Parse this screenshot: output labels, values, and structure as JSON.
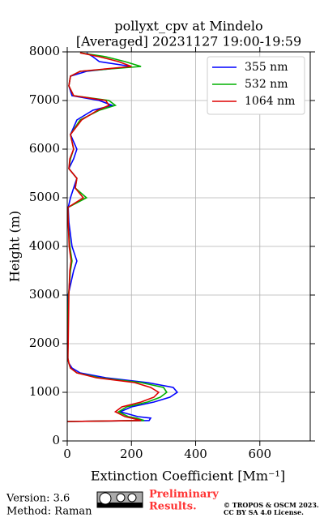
{
  "chart_data": {
    "type": "line",
    "title": "pollyxt_cpv at Mindelo",
    "subtitle": "[Averaged] 20231127 19:00-19:59",
    "x_label": "Extinction Coefficient [Mm⁻¹]",
    "y_label": "Height (m)",
    "y": [
      400,
      420,
      470,
      500,
      600,
      700,
      800,
      900,
      1000,
      1100,
      1200,
      1300,
      1400,
      1500,
      1600,
      1700,
      2000,
      2500,
      3000,
      3500,
      3700,
      4000,
      4500,
      4800,
      5000,
      5200,
      5400,
      5600,
      5800,
      6000,
      6300,
      6600,
      6800,
      6900,
      7000,
      7100,
      7300,
      7500,
      7600,
      7700,
      7800,
      7900,
      7980
    ],
    "series": [
      {
        "name": "355 nm",
        "color": "#0000ff",
        "values": [
          0,
          255,
          260,
          220,
          165,
          200,
          270,
          320,
          343,
          330,
          250,
          120,
          40,
          15,
          5,
          2,
          1,
          2,
          3,
          20,
          30,
          15,
          5,
          3,
          10,
          20,
          30,
          5,
          20,
          30,
          10,
          30,
          80,
          140,
          100,
          15,
          5,
          10,
          60,
          200,
          100,
          80,
          60
        ]
      },
      {
        "name": "532 nm",
        "color": "#00b000",
        "values": [
          0,
          240,
          215,
          190,
          160,
          185,
          250,
          290,
          310,
          300,
          230,
          100,
          30,
          10,
          5,
          2,
          2,
          3,
          4,
          10,
          15,
          8,
          3,
          2,
          60,
          25,
          30,
          5,
          10,
          20,
          10,
          40,
          100,
          150,
          130,
          20,
          5,
          10,
          40,
          230,
          180,
          120,
          40
        ]
      },
      {
        "name": "1064 nm",
        "color": "#dd0000",
        "values": [
          0,
          230,
          200,
          180,
          150,
          170,
          230,
          270,
          285,
          260,
          210,
          90,
          30,
          10,
          5,
          2,
          3,
          4,
          5,
          8,
          12,
          6,
          3,
          2,
          50,
          25,
          30,
          5,
          8,
          20,
          10,
          45,
          95,
          130,
          120,
          20,
          5,
          10,
          40,
          200,
          160,
          100,
          40
        ]
      }
    ],
    "xlim": [
      0,
      757
    ],
    "xticks": [
      0,
      200,
      400,
      600
    ],
    "ylim": [
      0,
      8000
    ],
    "yticks": [
      0,
      1000,
      2000,
      3000,
      4000,
      5000,
      6000,
      7000,
      8000
    ],
    "grid": true,
    "legend": "upper right"
  },
  "footer": {
    "version": "Version: 3.6",
    "method": "Method: Raman",
    "preliminary": [
      "Preliminary",
      "Results."
    ],
    "copyright": "© TROPOS & OSCM 2023.",
    "license": "CC BY SA 4.0 License."
  }
}
